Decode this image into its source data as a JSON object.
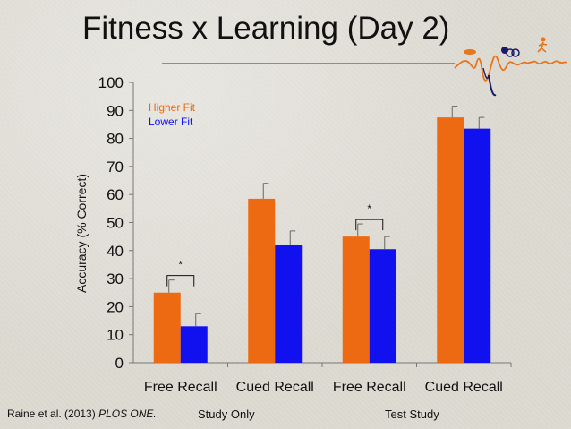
{
  "slide": {
    "title": "Fitness x Learning (Day 2)",
    "credit_authors": "Raine et al. (2013) ",
    "credit_journal": "PLOS ONE.",
    "group_labels": [
      "Study Only",
      "Test Study"
    ]
  },
  "colors": {
    "higher_fit": "#ee6a12",
    "lower_fit": "#1111f0",
    "accent_rule": "#e8741c"
  },
  "chart_data": {
    "type": "bar",
    "title": "",
    "ylabel": "Accuracy (% Correct)",
    "xlabel": "",
    "ylim": [
      0,
      100
    ],
    "yticks": [
      0,
      10,
      20,
      30,
      40,
      50,
      60,
      70,
      80,
      90,
      100
    ],
    "categories": [
      "Free Recall",
      "Cued Recall",
      "Free Recall",
      "Cued Recall"
    ],
    "legend_position": "top-left",
    "series": [
      {
        "name": "Higher Fit",
        "color": "#ee6a12",
        "values": [
          25,
          58.5,
          45,
          87.5
        ],
        "errors": [
          4.5,
          5.5,
          4.5,
          4
        ]
      },
      {
        "name": "Lower Fit",
        "color": "#1111f0",
        "values": [
          13,
          42,
          40.5,
          83.5
        ],
        "errors": [
          4.5,
          5,
          4.5,
          4
        ]
      }
    ],
    "annotations": [
      {
        "text": "*",
        "category_index": 0
      },
      {
        "text": "*",
        "category_index": 2
      }
    ]
  }
}
